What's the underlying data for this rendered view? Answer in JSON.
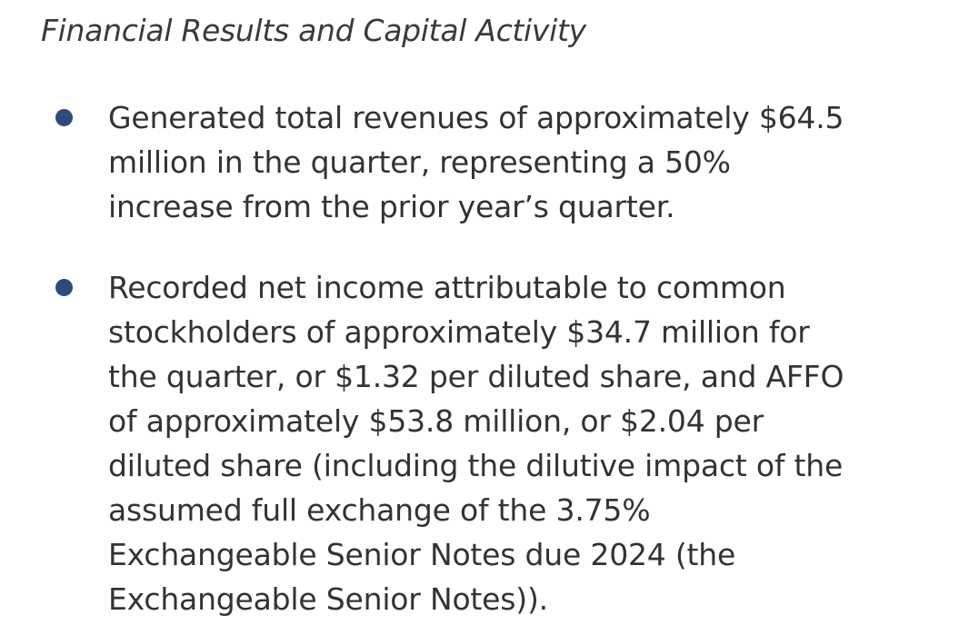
{
  "heading": "Financial Results and Capital Activity",
  "bullets": [
    {
      "lines": [
        "Generated total revenues of approximately $64.5",
        "million in the quarter, representing a 50%",
        "increase from the prior year’s quarter."
      ]
    },
    {
      "lines": [
        "Recorded net income attributable to common",
        "stockholders of approximately $34.7 million for",
        "the quarter, or $1.32 per diluted share, and AFFO",
        "of approximately $53.8 million, or $2.04 per",
        "diluted share (including the dilutive impact of the",
        "assumed full exchange of the 3.75%",
        "Exchangeable Senior Notes due 2024 (the",
        "Exchangeable Senior Notes))."
      ]
    }
  ]
}
